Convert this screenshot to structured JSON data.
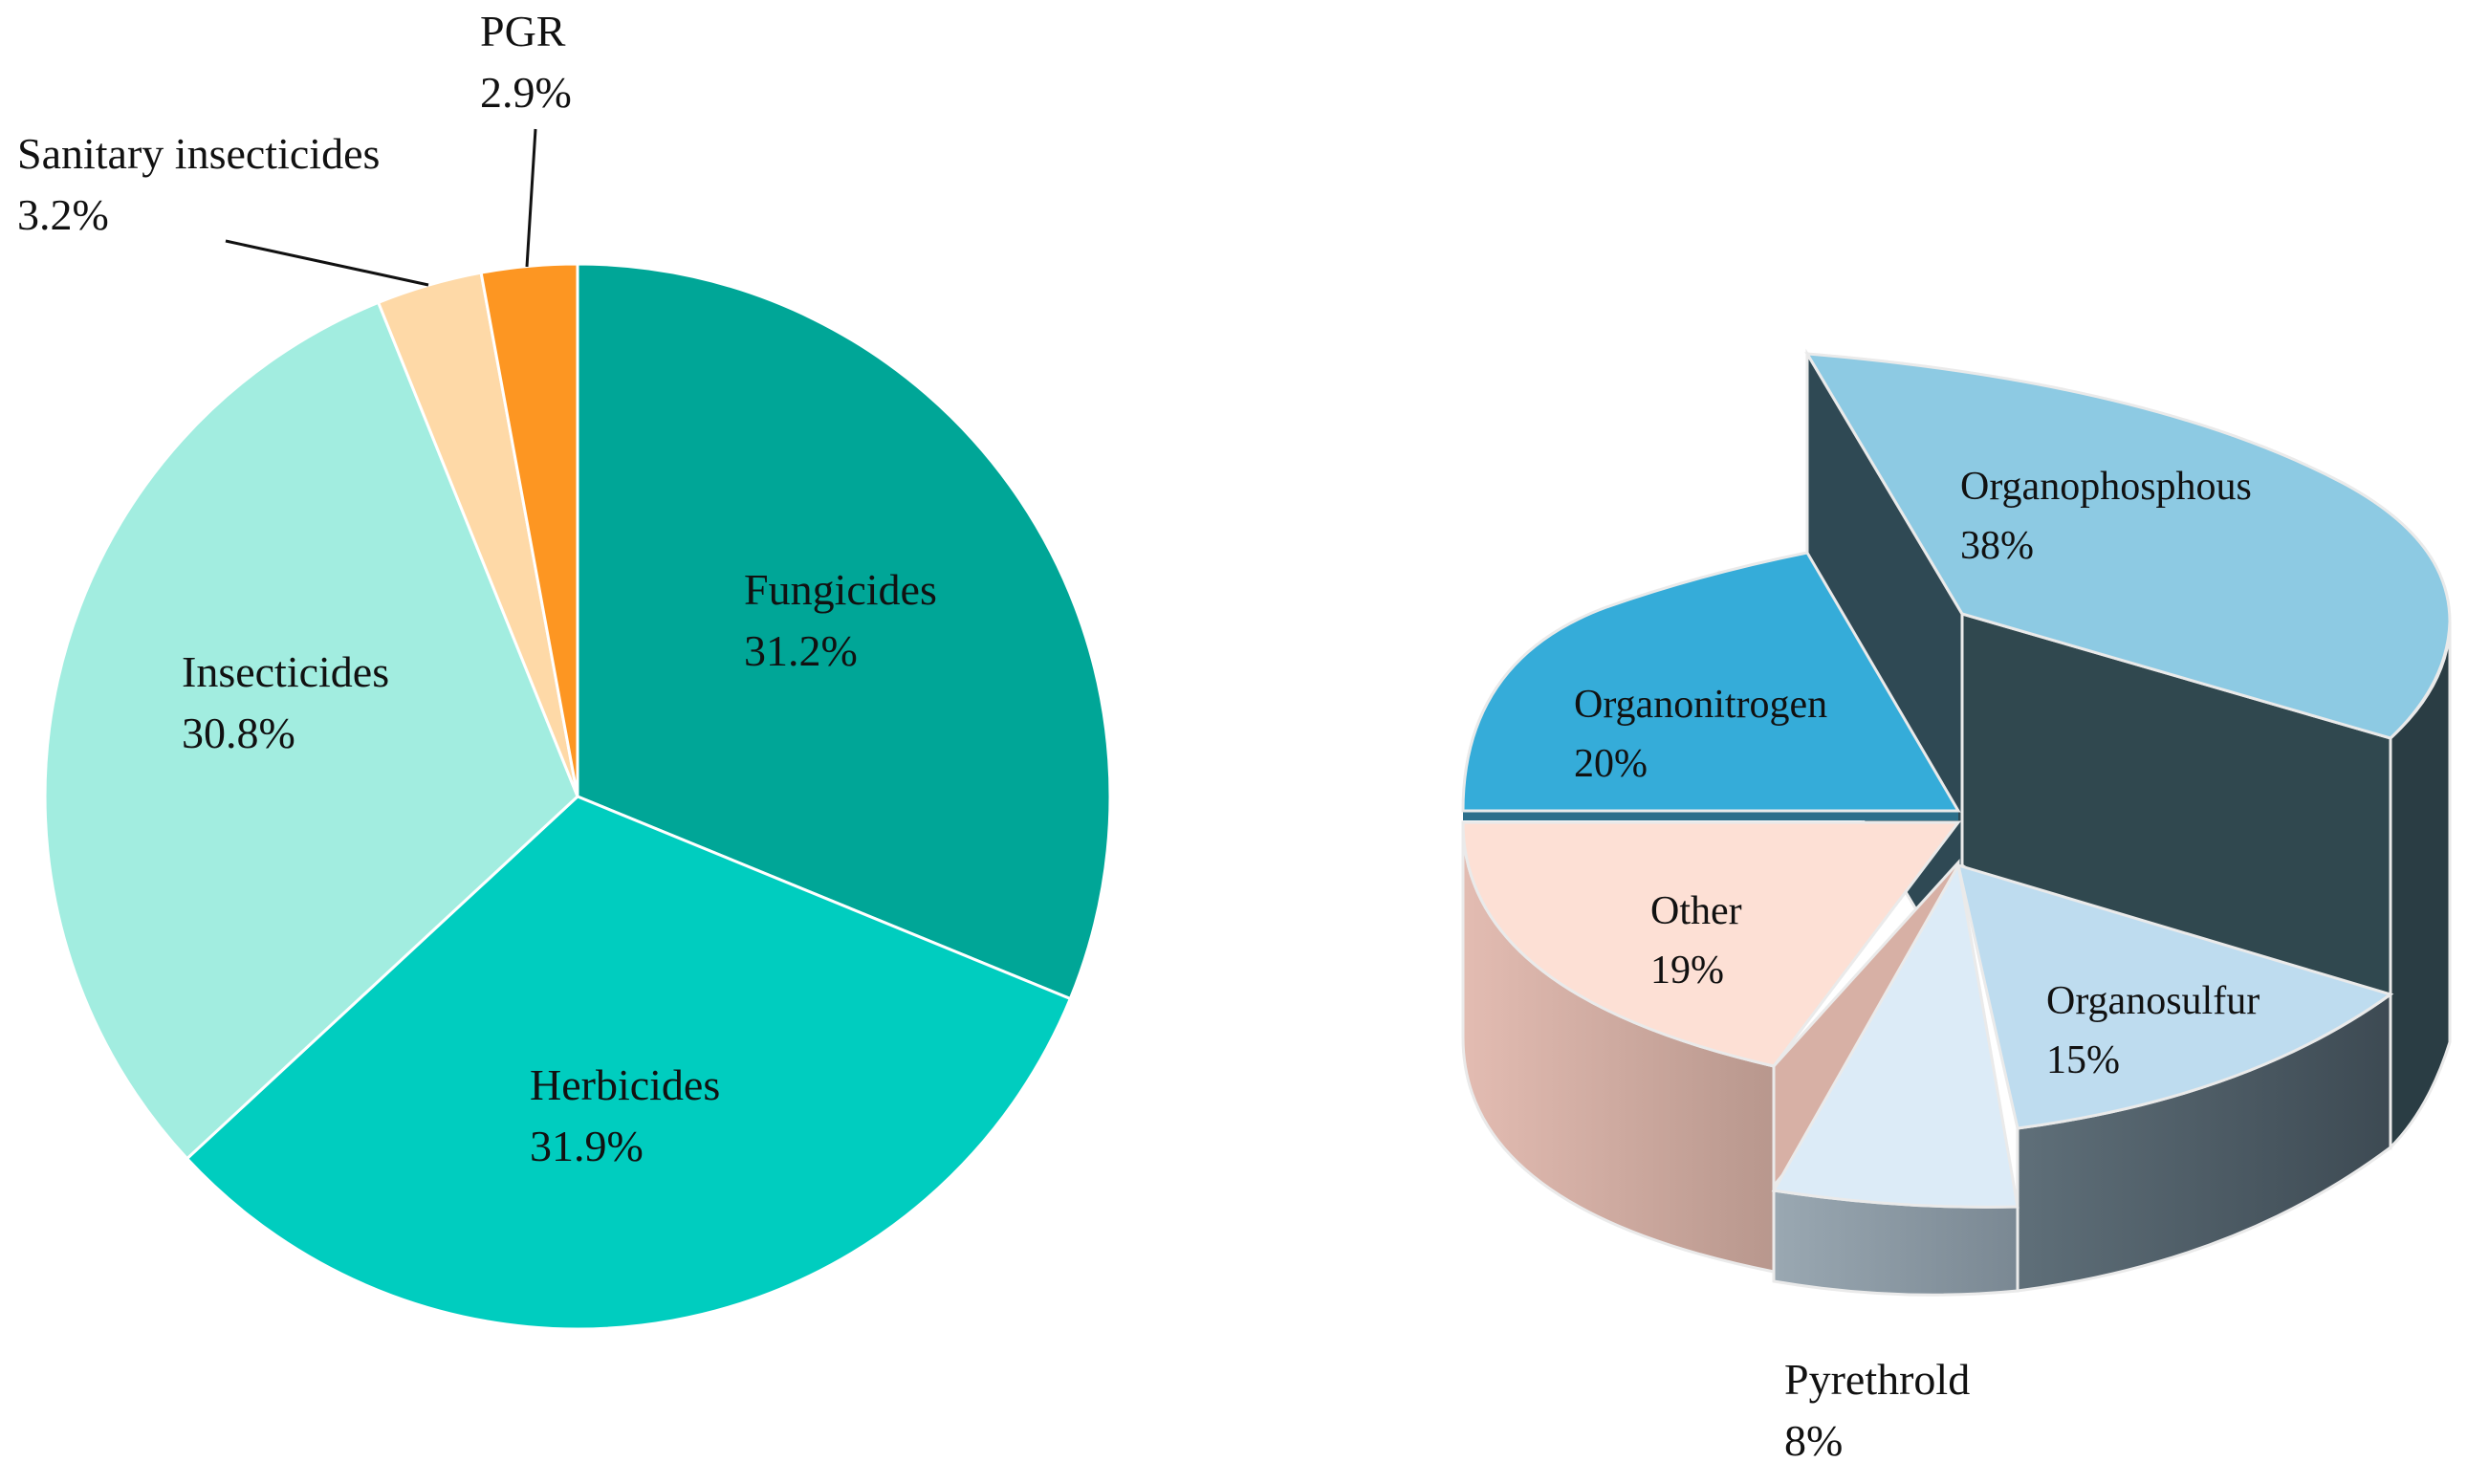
{
  "chart_data": [
    {
      "type": "pie",
      "title": "",
      "start": "12 o'clock, clockwise",
      "slices": [
        {
          "label": "Fungicides",
          "value": 31.2,
          "value_text": "31.2%",
          "color": "#00a697"
        },
        {
          "label": "Herbicides",
          "value": 31.9,
          "value_text": "31.9%",
          "color": "#00cdbf"
        },
        {
          "label": "Insecticides",
          "value": 30.8,
          "value_text": "30.8%",
          "color": "#a2ede0"
        },
        {
          "label": "Sanitary insecticides",
          "value": 3.2,
          "value_text": "3.2%",
          "color": "#fed9a7"
        },
        {
          "label": "PGR",
          "value": 2.9,
          "value_text": "2.9%",
          "color": "#fd9622"
        }
      ],
      "edge_color": "#ffffff"
    },
    {
      "type": "pie",
      "variant": "3d",
      "title": "",
      "slices": [
        {
          "label": "Organophosphous",
          "value": 38,
          "value_text": "38%",
          "color": "#8dcae3",
          "side_color": "#324d58"
        },
        {
          "label": "Organosulfur",
          "value": 15,
          "value_text": "15%",
          "color": "#bedcef",
          "side_color": "#485761"
        },
        {
          "label": "Pyrethrold",
          "value": 8,
          "value_text": "8%",
          "color": "#dcebf7",
          "side_color": "#8a9aa5"
        },
        {
          "label": "Other",
          "value": 19,
          "value_text": "19%",
          "color": "#fde0d5",
          "side_color": "#d4aa9d"
        },
        {
          "label": "Organonitrogen",
          "value": 20,
          "value_text": "20%",
          "color": "#35acd9",
          "side_color": "#2c6f8b"
        }
      ]
    }
  ]
}
